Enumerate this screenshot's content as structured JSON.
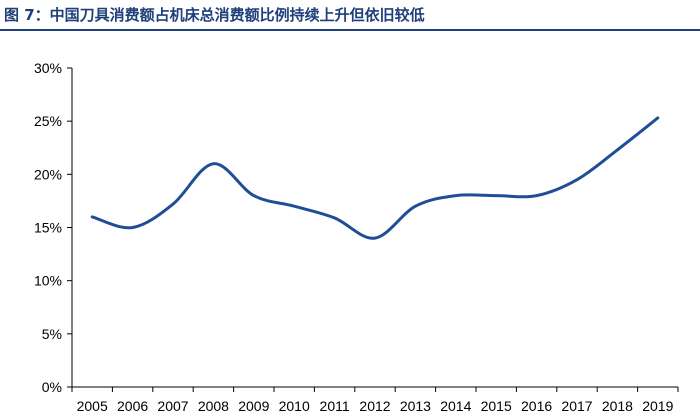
{
  "figure": {
    "title": "图 7：中国刀具消费额占机床总消费额比例持续上升但依旧较低"
  },
  "colors": {
    "title": "#1f3f7a",
    "line": "#1f4e96",
    "axis": "#000000"
  },
  "chart_data": {
    "type": "line",
    "x": [
      "2005",
      "2006",
      "2007",
      "2008",
      "2009",
      "2010",
      "2011",
      "2012",
      "2013",
      "2014",
      "2015",
      "2016",
      "2017",
      "2018",
      "2019"
    ],
    "series": [
      {
        "values": [
          16.0,
          15.0,
          17.2,
          21.0,
          18.0,
          17.0,
          15.9,
          14.0,
          17.0,
          18.0,
          18.0,
          18.0,
          19.5,
          22.3,
          25.3
        ]
      }
    ],
    "ylim": [
      0,
      30
    ],
    "y_ticks": [
      "0%",
      "5%",
      "10%",
      "15%",
      "20%",
      "25%",
      "30%"
    ],
    "y_tick_values": [
      0,
      5,
      10,
      15,
      20,
      25,
      30
    ],
    "grid": false,
    "legend": "none"
  }
}
